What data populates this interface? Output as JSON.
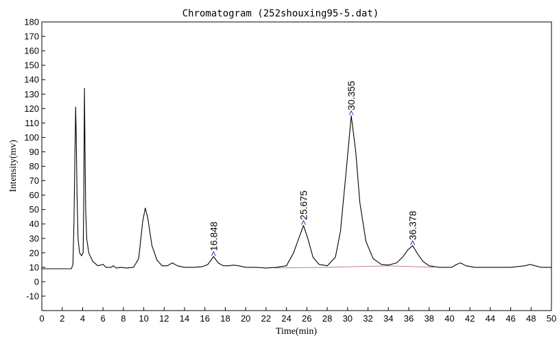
{
  "chart_data": {
    "type": "line",
    "title": "Chromatogram (252shouxing95-5.dat)",
    "xlabel": "Time(min)",
    "ylabel": "Intensity(mv)",
    "xlim": [
      0,
      50
    ],
    "ylim": [
      -20,
      180
    ],
    "x_ticks": [
      0,
      2,
      4,
      6,
      8,
      10,
      12,
      14,
      16,
      18,
      20,
      22,
      24,
      26,
      28,
      30,
      32,
      34,
      36,
      38,
      40,
      42,
      44,
      46,
      48,
      50
    ],
    "y_ticks": [
      -10,
      0,
      10,
      20,
      30,
      40,
      50,
      60,
      70,
      80,
      90,
      100,
      110,
      120,
      130,
      140,
      150,
      160,
      170,
      180
    ],
    "grid": false,
    "series": [
      {
        "color": "#000000",
        "points": [
          [
            0,
            9
          ],
          [
            2.9,
            9
          ],
          [
            3.05,
            12
          ],
          [
            3.15,
            40
          ],
          [
            3.25,
            90
          ],
          [
            3.32,
            121
          ],
          [
            3.38,
            100
          ],
          [
            3.45,
            60
          ],
          [
            3.55,
            30
          ],
          [
            3.7,
            20
          ],
          [
            3.9,
            18
          ],
          [
            4.05,
            20
          ],
          [
            4.12,
            60
          ],
          [
            4.18,
            134
          ],
          [
            4.24,
            90
          ],
          [
            4.3,
            50
          ],
          [
            4.4,
            30
          ],
          [
            4.6,
            20
          ],
          [
            5.0,
            14
          ],
          [
            5.5,
            11
          ],
          [
            6.0,
            12
          ],
          [
            6.3,
            10
          ],
          [
            6.8,
            10
          ],
          [
            7.0,
            11
          ],
          [
            7.3,
            9.5
          ],
          [
            7.8,
            10
          ],
          [
            8.3,
            9.5
          ],
          [
            9.0,
            10
          ],
          [
            9.5,
            16
          ],
          [
            9.9,
            42
          ],
          [
            10.15,
            51
          ],
          [
            10.4,
            44
          ],
          [
            10.8,
            25
          ],
          [
            11.3,
            15
          ],
          [
            11.8,
            11
          ],
          [
            12.3,
            11
          ],
          [
            12.8,
            13
          ],
          [
            13.3,
            11
          ],
          [
            14.0,
            10
          ],
          [
            15.0,
            10
          ],
          [
            15.8,
            10.5
          ],
          [
            16.3,
            12
          ],
          [
            16.848,
            17.5
          ],
          [
            17.3,
            13
          ],
          [
            17.8,
            11
          ],
          [
            18.3,
            11
          ],
          [
            18.8,
            11.5
          ],
          [
            19.3,
            11
          ],
          [
            20.0,
            10
          ],
          [
            21.0,
            10
          ],
          [
            22.0,
            9.5
          ],
          [
            23.0,
            10
          ],
          [
            24.0,
            11
          ],
          [
            24.7,
            20
          ],
          [
            25.1,
            28
          ],
          [
            25.675,
            39
          ],
          [
            26.1,
            30
          ],
          [
            26.6,
            17
          ],
          [
            27.2,
            12
          ],
          [
            28.0,
            11
          ],
          [
            28.8,
            17
          ],
          [
            29.3,
            35
          ],
          [
            29.8,
            72
          ],
          [
            30.355,
            115
          ],
          [
            30.8,
            90
          ],
          [
            31.2,
            55
          ],
          [
            31.8,
            28
          ],
          [
            32.5,
            16
          ],
          [
            33.3,
            12
          ],
          [
            34.0,
            11.5
          ],
          [
            34.8,
            13
          ],
          [
            35.4,
            17
          ],
          [
            35.9,
            22
          ],
          [
            36.378,
            25
          ],
          [
            36.9,
            19
          ],
          [
            37.4,
            14
          ],
          [
            38.0,
            11
          ],
          [
            39.0,
            10
          ],
          [
            40.2,
            10
          ],
          [
            40.7,
            12
          ],
          [
            41.1,
            13
          ],
          [
            41.6,
            11
          ],
          [
            42.5,
            10
          ],
          [
            44.0,
            10
          ],
          [
            46.0,
            10
          ],
          [
            47.4,
            11
          ],
          [
            47.9,
            12
          ],
          [
            48.4,
            11
          ],
          [
            49.0,
            10
          ],
          [
            50.0,
            10
          ]
        ]
      },
      {
        "color": "#c08080",
        "points": [
          [
            22.8,
            9.5
          ],
          [
            28.0,
            10.0
          ],
          [
            34.0,
            11.0
          ],
          [
            38.5,
            10.0
          ]
        ]
      }
    ],
    "peak_labels": [
      {
        "x": 16.848,
        "y": 17.5,
        "label": "16.848"
      },
      {
        "x": 25.675,
        "y": 39,
        "label": "25.675"
      },
      {
        "x": 30.355,
        "y": 115,
        "label": "30.355"
      },
      {
        "x": 36.378,
        "y": 25,
        "label": "36.378"
      }
    ]
  }
}
